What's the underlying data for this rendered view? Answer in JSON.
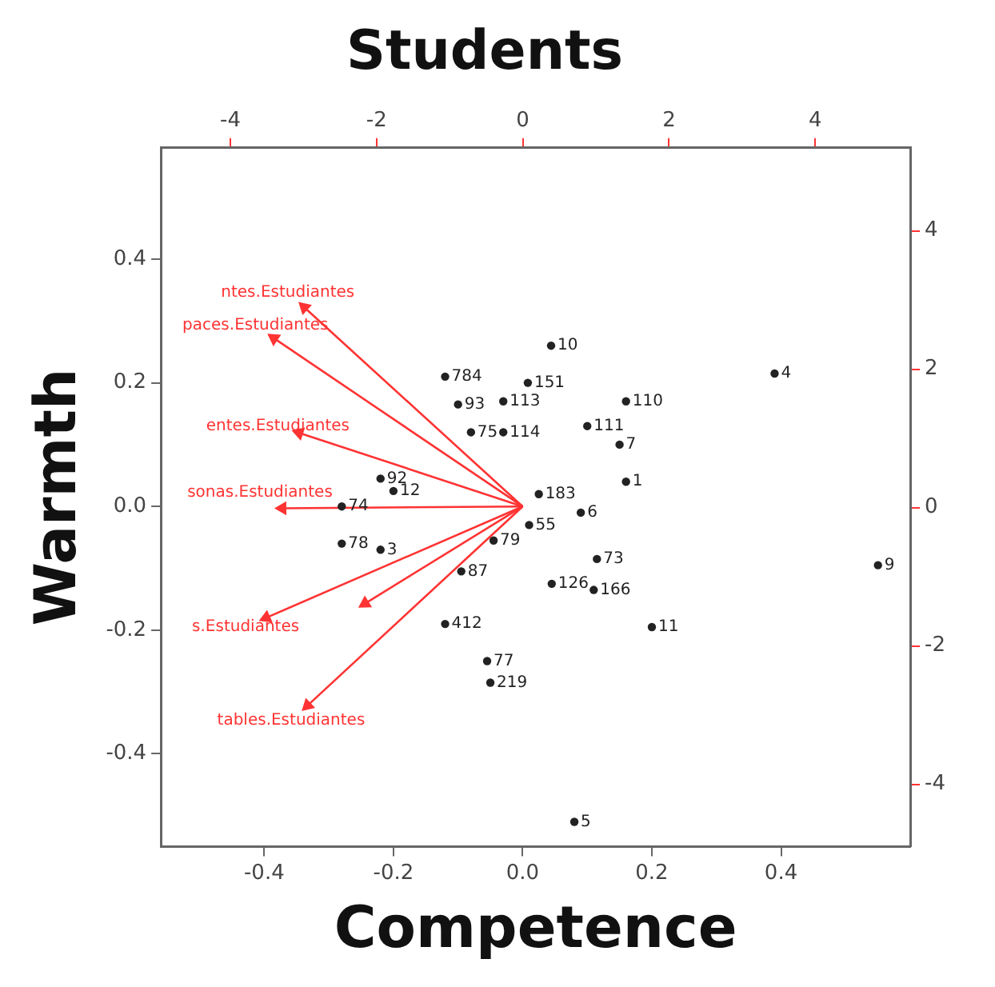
{
  "chart_data": {
    "type": "scatter",
    "title": "Students",
    "xlabel": "Competence",
    "ylabel": "Warmth",
    "xlim": [
      -0.56,
      0.6
    ],
    "ylim": [
      -0.55,
      0.58
    ],
    "x2lim": [
      -4.95,
      5.3
    ],
    "y2lim": [
      -4.9,
      5.2
    ],
    "xticks": [
      -0.4,
      -0.2,
      {
        "value": 0,
        "label": "0.0"
      },
      0.2,
      0.4
    ],
    "yticks": [
      -0.4,
      -0.2,
      {
        "value": 0,
        "label": "0.0"
      },
      0.2,
      0.4
    ],
    "x2ticks": [
      -4,
      -2,
      0,
      2,
      4
    ],
    "y2ticks": [
      -4,
      -2,
      0,
      2,
      4
    ],
    "grid": false,
    "legend": false,
    "marker": "circle",
    "line_style": "solid",
    "series": [
      {
        "name": "10",
        "color": "#222222",
        "x": [
          0.044
        ],
        "values": [
          0.26
        ]
      },
      {
        "name": "784",
        "color": "#222222",
        "x": [
          -0.12
        ],
        "values": [
          0.21
        ]
      },
      {
        "name": "151",
        "color": "#222222",
        "x": [
          0.008
        ],
        "values": [
          0.2
        ]
      },
      {
        "name": "93",
        "color": "#222222",
        "x": [
          -0.1
        ],
        "values": [
          0.165
        ]
      },
      {
        "name": "113",
        "color": "#222222",
        "x": [
          -0.03
        ],
        "values": [
          0.17
        ]
      },
      {
        "name": "110",
        "color": "#222222",
        "x": [
          0.16
        ],
        "values": [
          0.17
        ]
      },
      {
        "name": "111",
        "color": "#222222",
        "x": [
          0.1
        ],
        "values": [
          0.13
        ]
      },
      {
        "name": "7",
        "color": "#222222",
        "x": [
          0.15
        ],
        "values": [
          0.1
        ]
      },
      {
        "name": "75",
        "color": "#222222",
        "x": [
          -0.08
        ],
        "values": [
          0.12
        ]
      },
      {
        "name": "114",
        "color": "#222222",
        "x": [
          -0.03
        ],
        "values": [
          0.12
        ]
      },
      {
        "name": "1",
        "color": "#222222",
        "x": [
          0.16
        ],
        "values": [
          0.04
        ]
      },
      {
        "name": "183",
        "color": "#222222",
        "x": [
          0.025
        ],
        "values": [
          0.02
        ]
      },
      {
        "name": "6",
        "color": "#222222",
        "x": [
          0.09
        ],
        "values": [
          -0.01
        ]
      },
      {
        "name": "55",
        "color": "#222222",
        "x": [
          0.01
        ],
        "values": [
          -0.03
        ]
      },
      {
        "name": "79",
        "color": "#222222",
        "x": [
          -0.045
        ],
        "values": [
          -0.055
        ]
      },
      {
        "name": "73",
        "color": "#222222",
        "x": [
          0.115
        ],
        "values": [
          -0.085
        ]
      },
      {
        "name": "126",
        "color": "#222222",
        "x": [
          0.045
        ],
        "values": [
          -0.125
        ]
      },
      {
        "name": "166",
        "color": "#222222",
        "x": [
          0.11
        ],
        "values": [
          -0.135
        ]
      },
      {
        "name": "11",
        "color": "#222222",
        "x": [
          0.2
        ],
        "values": [
          -0.195
        ]
      },
      {
        "name": "4",
        "color": "#222222",
        "x": [
          0.39
        ],
        "values": [
          0.215
        ]
      },
      {
        "name": "9",
        "color": "#222222",
        "x": [
          0.55
        ],
        "values": [
          -0.095
        ]
      },
      {
        "name": "5",
        "color": "#222222",
        "x": [
          0.08
        ],
        "values": [
          -0.51
        ]
      },
      {
        "name": "87",
        "color": "#222222",
        "x": [
          -0.095
        ],
        "values": [
          -0.105
        ]
      },
      {
        "name": "412",
        "color": "#222222",
        "x": [
          -0.12
        ],
        "values": [
          -0.19
        ]
      },
      {
        "name": "77",
        "color": "#222222",
        "x": [
          -0.055
        ],
        "values": [
          -0.25
        ]
      },
      {
        "name": "219",
        "color": "#222222",
        "x": [
          -0.05
        ],
        "values": [
          -0.285
        ]
      },
      {
        "name": "92",
        "color": "#222222",
        "x": [
          -0.22
        ],
        "values": [
          0.045
        ]
      },
      {
        "name": "12",
        "color": "#222222",
        "x": [
          -0.2
        ],
        "values": [
          0.025
        ]
      },
      {
        "name": "74",
        "color": "#222222",
        "x": [
          -0.28
        ],
        "values": [
          0
        ]
      },
      {
        "name": "78",
        "color": "#222222",
        "x": [
          -0.28
        ],
        "values": [
          -0.06
        ]
      },
      {
        "name": "3",
        "color": "#222222",
        "x": [
          -0.22
        ],
        "values": [
          -0.07
        ]
      },
      {
        "type": "line",
        "marker": "triangle",
        "name": "ntes.Estudiantes",
        "color": "#ff3333",
        "x": [
          0,
          -0.338
        ],
        "values": [
          0,
          0.322
        ]
      },
      {
        "type": "line",
        "marker": "triangle",
        "name": "paces.Estudiantes",
        "color": "#ff3333",
        "x": [
          0,
          -0.385
        ],
        "values": [
          0,
          0.272
        ]
      },
      {
        "type": "line",
        "marker": "triangle",
        "name": "entes.Estudiantes",
        "color": "#ff3333",
        "x": [
          0,
          -0.346
        ],
        "values": [
          0,
          0.119
        ]
      },
      {
        "type": "line",
        "marker": "triangle",
        "name": "sonas.Estudiantes",
        "color": "#ff3333",
        "x": [
          0,
          -0.372
        ],
        "values": [
          0,
          -0.003
        ]
      },
      {
        "type": "line",
        "marker": "triangle",
        "name": "s.Estudiantes",
        "color": "#ff3333",
        "x": [
          0,
          -0.397
        ],
        "values": [
          0,
          -0.18
        ]
      },
      {
        "type": "line",
        "marker": "triangle",
        "color": "#ff3333",
        "x": [
          0,
          -0.244
        ],
        "values": [
          0,
          -0.157
        ]
      },
      {
        "type": "line",
        "marker": "triangle",
        "name": "tables.Estudiantes",
        "color": "#ff3333",
        "x": [
          0,
          -0.333
        ],
        "values": [
          0,
          -0.322
        ]
      }
    ]
  }
}
